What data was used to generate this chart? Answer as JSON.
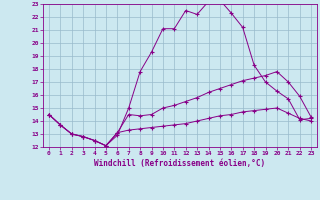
{
  "xlabel": "Windchill (Refroidissement éolien,°C)",
  "background_color": "#cce8f0",
  "grid_color": "#99bbcc",
  "line_color": "#880088",
  "xlim": [
    -0.5,
    23.5
  ],
  "ylim": [
    12,
    23
  ],
  "xticks": [
    0,
    1,
    2,
    3,
    4,
    5,
    6,
    7,
    8,
    9,
    10,
    11,
    12,
    13,
    14,
    15,
    16,
    17,
    18,
    19,
    20,
    21,
    22,
    23
  ],
  "yticks": [
    12,
    13,
    14,
    15,
    16,
    17,
    18,
    19,
    20,
    21,
    22,
    23
  ],
  "line1_x": [
    0,
    1,
    2,
    3,
    4,
    5,
    6,
    7,
    8,
    9,
    10,
    11,
    12,
    13,
    14,
    15,
    16,
    17,
    18,
    19,
    20,
    21,
    22,
    23
  ],
  "line1_y": [
    14.5,
    13.7,
    13.0,
    12.8,
    12.5,
    12.1,
    12.9,
    15.0,
    17.8,
    19.3,
    21.1,
    21.1,
    22.5,
    22.2,
    23.2,
    23.3,
    22.3,
    21.2,
    18.3,
    17.0,
    16.3,
    15.7,
    14.1,
    14.2
  ],
  "line2_x": [
    0,
    1,
    2,
    3,
    4,
    5,
    6,
    7,
    8,
    9,
    10,
    11,
    12,
    13,
    14,
    15,
    16,
    17,
    18,
    19,
    20,
    21,
    22,
    23
  ],
  "line2_y": [
    14.5,
    13.7,
    13.0,
    12.8,
    12.5,
    12.1,
    13.1,
    14.5,
    14.4,
    14.5,
    15.0,
    15.2,
    15.5,
    15.8,
    16.2,
    16.5,
    16.8,
    17.1,
    17.3,
    17.5,
    17.8,
    17.0,
    15.9,
    14.3
  ],
  "line3_x": [
    0,
    1,
    2,
    3,
    4,
    5,
    6,
    7,
    8,
    9,
    10,
    11,
    12,
    13,
    14,
    15,
    16,
    17,
    18,
    19,
    20,
    21,
    22,
    23
  ],
  "line3_y": [
    14.5,
    13.7,
    13.0,
    12.8,
    12.5,
    12.1,
    13.1,
    13.3,
    13.4,
    13.5,
    13.6,
    13.7,
    13.8,
    14.0,
    14.2,
    14.4,
    14.5,
    14.7,
    14.8,
    14.9,
    15.0,
    14.6,
    14.2,
    14.0
  ],
  "tick_fontsize": 4.5,
  "xlabel_fontsize": 5.5
}
